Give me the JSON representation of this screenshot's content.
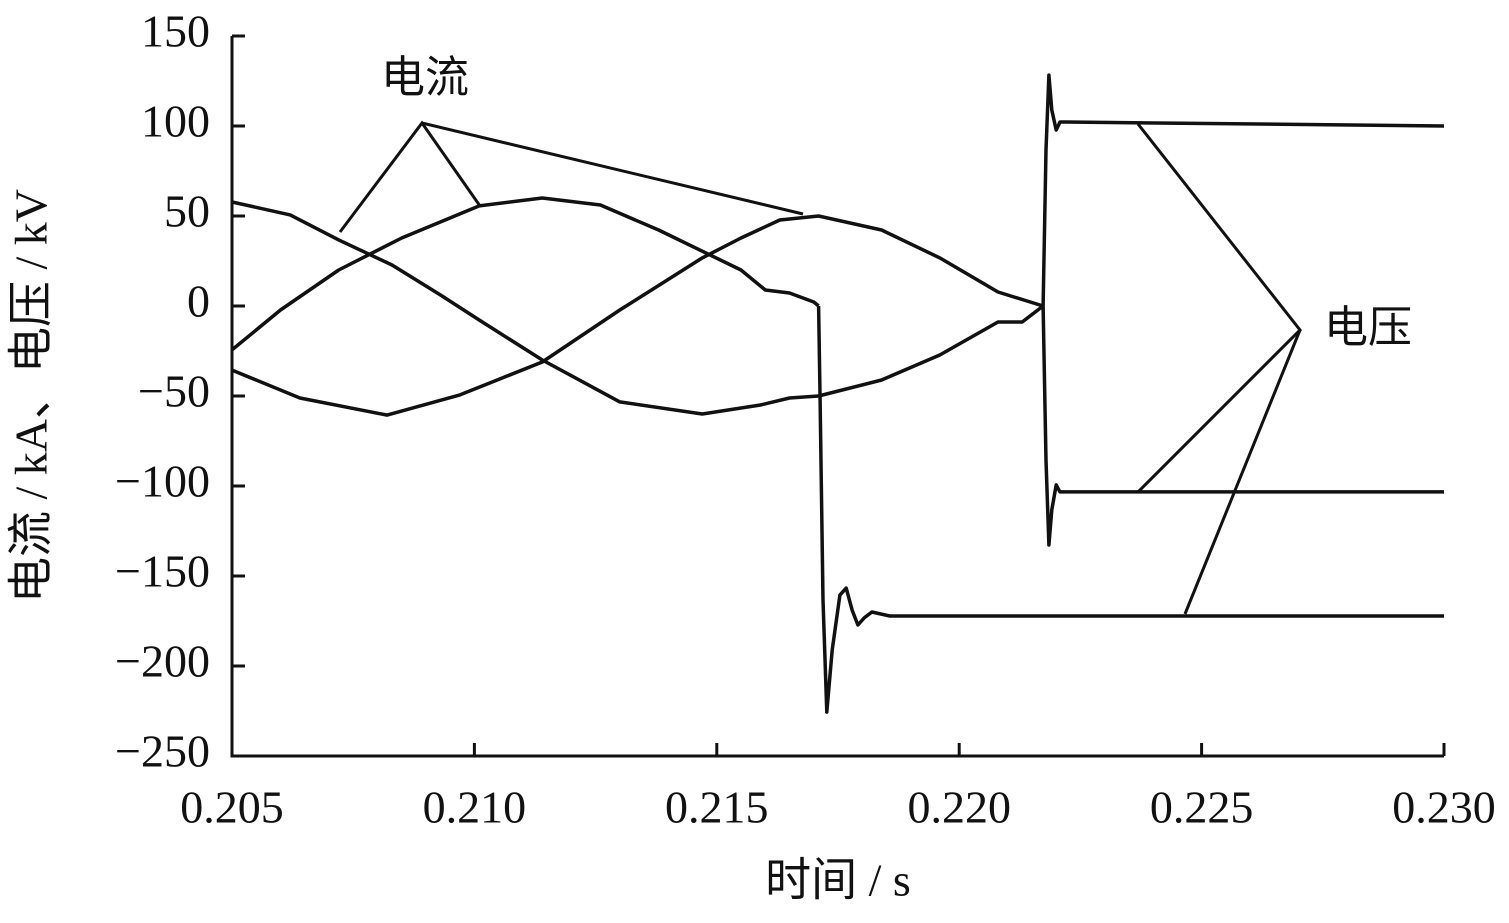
{
  "chart_data": {
    "type": "line",
    "x_label": "时间 / s",
    "y_label": "电流 / kA、电压 / kV",
    "annotations": [
      "电流",
      "电压"
    ],
    "xlim": [
      0.205,
      0.23
    ],
    "xticks": [
      {
        "value": 0.205,
        "label": "0.205"
      },
      {
        "value": 0.21,
        "label": "0.210"
      },
      {
        "value": 0.215,
        "label": "0.215"
      },
      {
        "value": 0.22,
        "label": "0.220"
      },
      {
        "value": 0.225,
        "label": "0.225"
      },
      {
        "value": 0.23,
        "label": "0.230"
      }
    ],
    "ylim": [
      -250,
      150
    ],
    "yticks": [
      {
        "value": -250,
        "label": "−250"
      },
      {
        "value": -200,
        "label": "−200"
      },
      {
        "value": -150,
        "label": "−150"
      },
      {
        "value": -100,
        "label": "−100"
      },
      {
        "value": -50,
        "label": "−50"
      },
      0,
      50,
      100,
      150
    ],
    "series": [
      {
        "color": "#111111",
        "x": [
          0.205,
          0.2062,
          0.2072,
          0.2083,
          0.2093,
          0.2101,
          0.2114,
          0.213,
          0.2147,
          0.2159,
          0.2165,
          0.2171,
          0.2184,
          0.2196,
          0.2208,
          0.2213,
          0.22173
        ],
        "values": [
          57.8,
          50.6,
          36.7,
          22.8,
          6.1,
          -7.8,
          -30.0,
          -53.3,
          -60.0,
          -55.0,
          -51.1,
          -50.0,
          -41.1,
          -27.2,
          -8.9,
          -8.9,
          0
        ]
      },
      {
        "color": "#111111",
        "x": [
          0.205,
          0.206,
          0.2072,
          0.2085,
          0.2101,
          0.2114,
          0.2126,
          0.2138,
          0.2155,
          0.216,
          0.2165,
          0.217,
          0.2171
        ],
        "values": [
          -24.4,
          -2.2,
          20.0,
          37.8,
          55.6,
          60.0,
          56.1,
          42.2,
          20.0,
          8.9,
          7.2,
          2.2,
          0
        ]
      },
      {
        "color": "#111111",
        "x": [
          0.205,
          0.2064,
          0.2082,
          0.2097,
          0.2114,
          0.213,
          0.2147,
          0.2155,
          0.2163,
          0.2171,
          0.2184,
          0.2196,
          0.2208,
          0.22173
        ],
        "values": [
          -35.6,
          -51.1,
          -60.6,
          -49.4,
          -31.1,
          -2.2,
          26.7,
          37.8,
          47.8,
          50.0,
          42.2,
          26.7,
          7.8,
          0
        ]
      },
      {
        "color": "#111111",
        "x": [
          0.2171,
          0.21713,
          0.21719,
          0.21727,
          0.21738,
          0.21754,
          0.21767,
          0.21779,
          0.21791,
          0.21804,
          0.2182,
          0.21857,
          0.23
        ],
        "values": [
          0,
          -52.2,
          -163.3,
          -225.6,
          -191.1,
          -160.6,
          -156.7,
          -168.9,
          -177.2,
          -173.3,
          -170.0,
          -172.2,
          -172.2
        ]
      },
      {
        "color": "#111111",
        "x": [
          0.22173,
          0.22179,
          0.22185,
          0.22191,
          0.222,
          0.22208,
          0.2222,
          0.23
        ],
        "values": [
          0,
          86.7,
          128.3,
          108.9,
          97.8,
          102.2,
          102.2,
          100
        ]
      },
      {
        "color": "#111111",
        "x": [
          0.22173,
          0.22179,
          0.22185,
          0.22191,
          0.222,
          0.22208,
          0.2222,
          0.23
        ],
        "values": [
          0,
          -85.6,
          -132.8,
          -113.3,
          -99.4,
          -103.3,
          -103.3,
          -103.3
        ]
      }
    ]
  }
}
